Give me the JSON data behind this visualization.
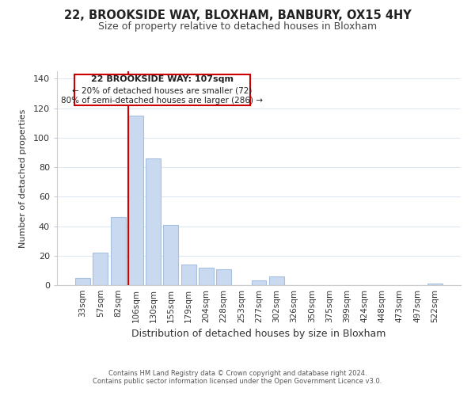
{
  "title1": "22, BROOKSIDE WAY, BLOXHAM, BANBURY, OX15 4HY",
  "title2": "Size of property relative to detached houses in Bloxham",
  "xlabel": "Distribution of detached houses by size in Bloxham",
  "ylabel": "Number of detached properties",
  "bar_color": "#c8d9f0",
  "bar_edge_color": "#a8c0e0",
  "bin_labels": [
    "33sqm",
    "57sqm",
    "82sqm",
    "106sqm",
    "130sqm",
    "155sqm",
    "179sqm",
    "204sqm",
    "228sqm",
    "253sqm",
    "277sqm",
    "302sqm",
    "326sqm",
    "350sqm",
    "375sqm",
    "399sqm",
    "424sqm",
    "448sqm",
    "473sqm",
    "497sqm",
    "522sqm"
  ],
  "bar_heights": [
    5,
    22,
    46,
    115,
    86,
    41,
    14,
    12,
    11,
    0,
    3,
    6,
    0,
    0,
    0,
    0,
    0,
    0,
    0,
    0,
    1
  ],
  "marker_bar_index": 3,
  "marker_color": "#cc0000",
  "ylim": [
    0,
    145
  ],
  "yticks": [
    0,
    20,
    40,
    60,
    80,
    100,
    120,
    140
  ],
  "annotation_title": "22 BROOKSIDE WAY: 107sqm",
  "annotation_line1": "← 20% of detached houses are smaller (72)",
  "annotation_line2": "80% of semi-detached houses are larger (286) →",
  "annotation_box_color": "#ffffff",
  "annotation_box_edge": "#cc0000",
  "footer1": "Contains HM Land Registry data © Crown copyright and database right 2024.",
  "footer2": "Contains public sector information licensed under the Open Government Licence v3.0.",
  "background_color": "#ffffff",
  "grid_color": "#dce8f5"
}
